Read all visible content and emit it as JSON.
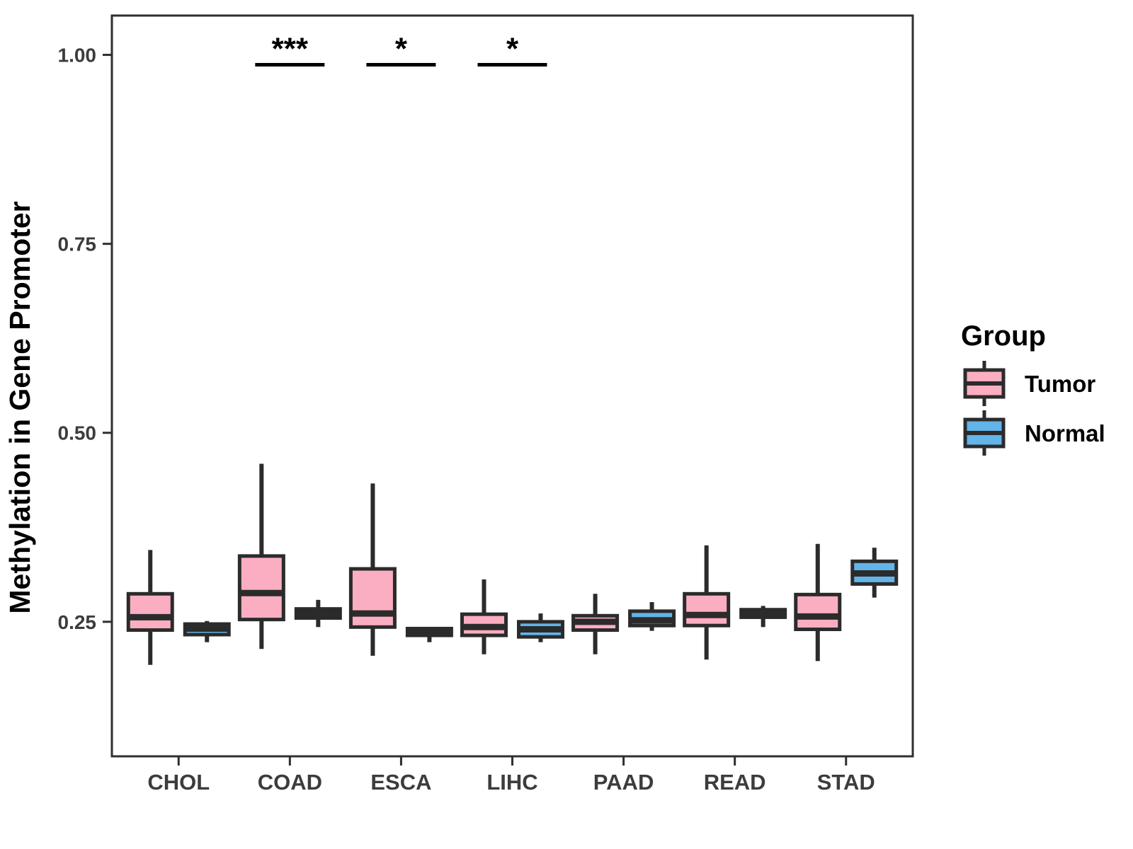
{
  "chart_data": {
    "type": "boxplot",
    "title": "",
    "xlabel": "",
    "ylabel": "Methylation in Gene Promoter",
    "categories": [
      "CHOL",
      "COAD",
      "ESCA",
      "LIHC",
      "PAAD",
      "READ",
      "STAD"
    ],
    "groups": [
      {
        "name": "Tumor",
        "color": "#FBAEC1"
      },
      {
        "name": "Normal",
        "color": "#63B4E9"
      }
    ],
    "yticks": [
      0.25,
      0.5,
      0.75,
      1.0
    ],
    "ytick_labels": [
      "0.25",
      "0.50",
      "0.75",
      "1.00"
    ],
    "ylim": [
      0.072,
      1.052
    ],
    "grid": false,
    "series": [
      {
        "name": "Tumor",
        "values": [
          {
            "category": "CHOL",
            "min": 0.193,
            "q1": 0.239,
            "median": 0.256,
            "q3": 0.287,
            "max": 0.345
          },
          {
            "category": "COAD",
            "min": 0.214,
            "q1": 0.253,
            "median": 0.288,
            "q3": 0.337,
            "max": 0.459
          },
          {
            "category": "ESCA",
            "min": 0.205,
            "q1": 0.243,
            "median": 0.261,
            "q3": 0.32,
            "max": 0.433
          },
          {
            "category": "LIHC",
            "min": 0.207,
            "q1": 0.232,
            "median": 0.243,
            "q3": 0.26,
            "max": 0.306
          },
          {
            "category": "PAAD",
            "min": 0.207,
            "q1": 0.239,
            "median": 0.25,
            "q3": 0.258,
            "max": 0.287
          },
          {
            "category": "READ",
            "min": 0.2,
            "q1": 0.245,
            "median": 0.259,
            "q3": 0.287,
            "max": 0.351
          },
          {
            "category": "STAD",
            "min": 0.198,
            "q1": 0.24,
            "median": 0.257,
            "q3": 0.286,
            "max": 0.353
          }
        ]
      },
      {
        "name": "Normal",
        "values": [
          {
            "category": "CHOL",
            "min": 0.223,
            "q1": 0.233,
            "median": 0.241,
            "q3": 0.247,
            "max": 0.251
          },
          {
            "category": "COAD",
            "min": 0.243,
            "q1": 0.255,
            "median": 0.261,
            "q3": 0.267,
            "max": 0.279
          },
          {
            "category": "ESCA",
            "min": 0.223,
            "q1": 0.232,
            "median": 0.236,
            "q3": 0.241,
            "max": 0.243
          },
          {
            "category": "LIHC",
            "min": 0.223,
            "q1": 0.23,
            "median": 0.24,
            "q3": 0.25,
            "max": 0.261
          },
          {
            "category": "PAAD",
            "min": 0.238,
            "q1": 0.245,
            "median": 0.252,
            "q3": 0.264,
            "max": 0.276
          },
          {
            "category": "READ",
            "min": 0.243,
            "q1": 0.256,
            "median": 0.262,
            "q3": 0.266,
            "max": 0.271
          },
          {
            "category": "STAD",
            "min": 0.282,
            "q1": 0.3,
            "median": 0.314,
            "q3": 0.33,
            "max": 0.348
          }
        ]
      }
    ],
    "significance": [
      {
        "category": "COAD",
        "label": "***",
        "y": 0.987
      },
      {
        "category": "ESCA",
        "label": "*",
        "y": 0.987
      },
      {
        "category": "LIHC",
        "label": "*",
        "y": 0.987
      }
    ],
    "legend": {
      "title": "Group",
      "position": "right",
      "entries": [
        "Tumor",
        "Normal"
      ]
    },
    "colors": {
      "tumor_fill": "#FBAEC1",
      "normal_fill": "#63B4E9",
      "box_outline": "#2B2B2B",
      "axis_text": "#3C3C3C",
      "panel_border": "#2F2F2F",
      "annotation": "#000000"
    }
  }
}
